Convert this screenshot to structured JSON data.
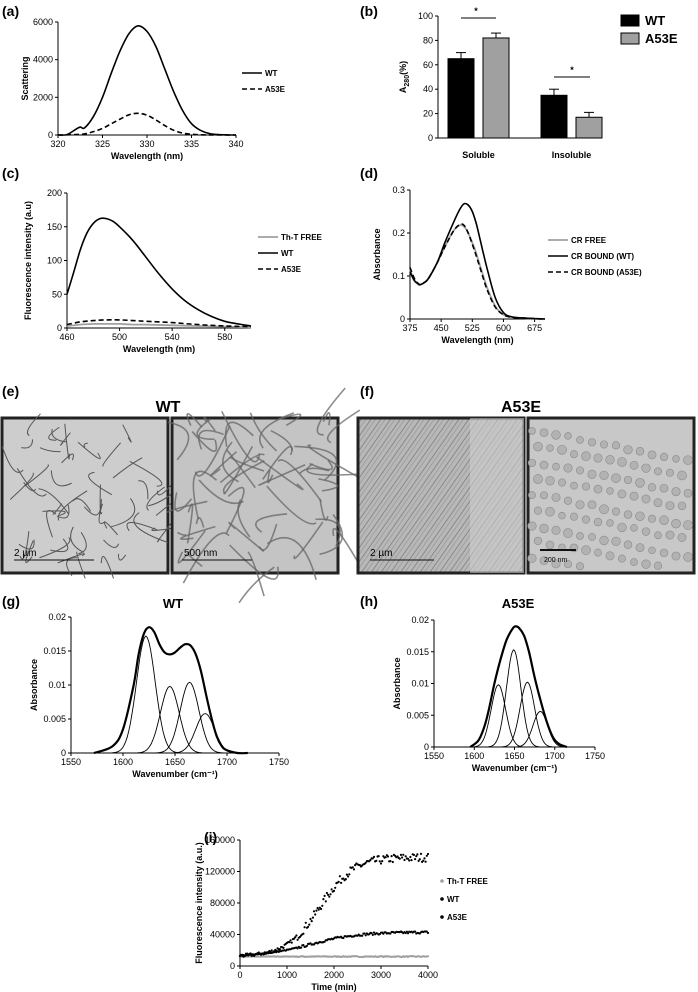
{
  "panels": {
    "a": {
      "letter": "(a)"
    },
    "b": {
      "letter": "(b)"
    },
    "c": {
      "letter": "(c)"
    },
    "d": {
      "letter": "(d)"
    },
    "e": {
      "letter": "(e)",
      "title": "WT",
      "scale_left": "2  µm",
      "scale_right": "500  nm"
    },
    "f": {
      "letter": "(f)",
      "title": "A53E",
      "scale_left": "2  µm",
      "scale_right": "200 nm"
    },
    "g": {
      "letter": "(g)"
    },
    "h": {
      "letter": "(h)"
    },
    "i": {
      "letter": "(i)"
    }
  },
  "colors": {
    "black": "#000000",
    "gray": "#a0a0a0",
    "micrograph_bg": "#c9c9c9"
  },
  "chart_data": [
    {
      "id": "a",
      "type": "line",
      "xlabel": "Wavelength (nm)",
      "ylabel": "Scattering",
      "xlim": [
        320,
        340
      ],
      "ylim": [
        0,
        6000
      ],
      "xticks": [
        320,
        325,
        330,
        335,
        340
      ],
      "yticks": [
        0,
        2000,
        4000,
        6000
      ],
      "series": [
        {
          "name": "WT",
          "style": "solid",
          "x": [
            320,
            321,
            322,
            322.5,
            323,
            324,
            325,
            326,
            327,
            328,
            329,
            330,
            331,
            332,
            333,
            334,
            335,
            336,
            337,
            338,
            339,
            340
          ],
          "values": [
            0,
            20,
            300,
            420,
            380,
            1000,
            2000,
            3300,
            4500,
            5400,
            5800,
            5500,
            4700,
            3500,
            2300,
            1300,
            600,
            250,
            80,
            20,
            5,
            0
          ]
        },
        {
          "name": "A53E",
          "style": "dashed",
          "x": [
            320,
            322,
            323,
            324,
            325,
            326,
            327,
            328,
            329,
            330,
            331,
            332,
            333,
            334,
            335,
            336,
            337,
            338,
            340
          ],
          "values": [
            0,
            20,
            60,
            180,
            350,
            600,
            850,
            1080,
            1150,
            1050,
            800,
            500,
            250,
            100,
            40,
            10,
            5,
            0,
            0
          ]
        }
      ]
    },
    {
      "id": "b",
      "type": "bar",
      "ylabel_main": "A",
      "ylabel_sub": "280",
      "ylabel_tail": "(%)",
      "ylim": [
        0,
        100
      ],
      "yticks": [
        0,
        20,
        40,
        60,
        80,
        100
      ],
      "categories": [
        "Soluble",
        "Insoluble"
      ],
      "series": [
        {
          "name": "WT",
          "color": "#000000",
          "values": [
            65,
            35
          ],
          "errors": [
            5,
            5
          ]
        },
        {
          "name": "A53E",
          "color": "#a0a0a0",
          "values": [
            82,
            17
          ],
          "errors": [
            4,
            4
          ]
        }
      ],
      "annotations": [
        "*",
        "*"
      ]
    },
    {
      "id": "c",
      "type": "line",
      "xlabel": "Wavelength (nm)",
      "ylabel": "Fluorescence intensity (a.u)",
      "xlim": [
        460,
        600
      ],
      "ylim": [
        0,
        200
      ],
      "xticks": [
        460,
        500,
        540,
        580
      ],
      "yticks": [
        0,
        50,
        100,
        150,
        200
      ],
      "series": [
        {
          "name": "Th-T FREE",
          "style": "solid-gray",
          "x": [
            460,
            470,
            480,
            490,
            500,
            510,
            520,
            540,
            560,
            580,
            600
          ],
          "values": [
            3,
            5,
            6,
            6,
            6,
            5,
            5,
            4,
            3,
            2,
            1
          ]
        },
        {
          "name": "WT",
          "style": "solid",
          "x": [
            460,
            465,
            470,
            475,
            480,
            485,
            490,
            495,
            500,
            510,
            520,
            530,
            540,
            550,
            560,
            570,
            580,
            590,
            600
          ],
          "values": [
            50,
            82,
            115,
            140,
            155,
            162,
            162,
            158,
            150,
            130,
            105,
            80,
            58,
            40,
            27,
            17,
            10,
            6,
            3
          ]
        },
        {
          "name": "A53E",
          "style": "dashed",
          "x": [
            460,
            470,
            480,
            490,
            500,
            510,
            520,
            540,
            560,
            580,
            600
          ],
          "values": [
            5,
            9,
            11,
            12,
            12,
            11,
            10,
            8,
            5,
            3,
            2
          ]
        }
      ]
    },
    {
      "id": "d",
      "type": "line",
      "xlabel": "Wavelength (nm)",
      "ylabel": "Absorbance",
      "xlim": [
        375,
        700
      ],
      "ylim": [
        0,
        0.3
      ],
      "xticks": [
        375,
        450,
        525,
        600,
        675
      ],
      "yticks": [
        0,
        0.1,
        0.2,
        0.3
      ],
      "series": [
        {
          "name": "CR FREE",
          "style": "solid-gray",
          "x": [
            375,
            385,
            395,
            400,
            410,
            420,
            440,
            460,
            480,
            495,
            505,
            515,
            530,
            545,
            560,
            580,
            600,
            620,
            650,
            700
          ],
          "values": [
            0.115,
            0.09,
            0.08,
            0.08,
            0.085,
            0.095,
            0.13,
            0.17,
            0.205,
            0.218,
            0.215,
            0.2,
            0.165,
            0.12,
            0.075,
            0.03,
            0.01,
            0.005,
            0.002,
            0
          ]
        },
        {
          "name": "CR BOUND (WT)",
          "style": "solid",
          "x": [
            375,
            385,
            395,
            400,
            410,
            420,
            440,
            460,
            480,
            495,
            505,
            515,
            525,
            535,
            545,
            560,
            580,
            600,
            620,
            650,
            700
          ],
          "values": [
            0.11,
            0.09,
            0.082,
            0.08,
            0.085,
            0.095,
            0.13,
            0.18,
            0.225,
            0.255,
            0.268,
            0.265,
            0.25,
            0.22,
            0.18,
            0.12,
            0.05,
            0.015,
            0.005,
            0.002,
            0
          ]
        },
        {
          "name": "CR BOUND (A53E)",
          "style": "dashed",
          "x": [
            375,
            385,
            395,
            400,
            410,
            420,
            440,
            460,
            480,
            495,
            505,
            515,
            530,
            545,
            560,
            580,
            600,
            620,
            650,
            700
          ],
          "values": [
            0.12,
            0.095,
            0.082,
            0.08,
            0.085,
            0.095,
            0.13,
            0.17,
            0.205,
            0.22,
            0.218,
            0.2,
            0.16,
            0.115,
            0.07,
            0.028,
            0.01,
            0.004,
            0.002,
            0
          ]
        }
      ]
    },
    {
      "id": "g",
      "type": "line",
      "title": "WT",
      "xlabel": "Wavenumber (cm⁻¹)",
      "ylabel": "Absorbance",
      "xlim": [
        1550,
        1750
      ],
      "ylim": [
        0,
        0.02
      ],
      "xticks": [
        1550,
        1600,
        1650,
        1700,
        1750
      ],
      "yticks": [
        0,
        0.005,
        0.01,
        0.015,
        0.02
      ],
      "components": [
        {
          "center": 1622,
          "height": 0.0172,
          "width": 9
        },
        {
          "center": 1645,
          "height": 0.0098,
          "width": 9
        },
        {
          "center": 1664,
          "height": 0.0104,
          "width": 9
        },
        {
          "center": 1679,
          "height": 0.0058,
          "width": 9
        }
      ],
      "envelope": {
        "x": [
          1572,
          1590,
          1600,
          1610,
          1615,
          1620,
          1625,
          1630,
          1635,
          1640,
          1645,
          1650,
          1655,
          1660,
          1665,
          1670,
          1675,
          1680,
          1685,
          1690,
          1695,
          1700,
          1710,
          1720
        ],
        "values": [
          0,
          0.001,
          0.0035,
          0.0098,
          0.0145,
          0.0175,
          0.0185,
          0.0178,
          0.016,
          0.0148,
          0.0145,
          0.0148,
          0.0155,
          0.016,
          0.0158,
          0.0145,
          0.012,
          0.0085,
          0.0052,
          0.0025,
          0.001,
          0.0004,
          0,
          0
        ]
      }
    },
    {
      "id": "h",
      "type": "line",
      "title": "A53E",
      "xlabel": "Wavenumber (cm⁻¹)",
      "ylabel": "Absorbance",
      "xlim": [
        1550,
        1750
      ],
      "ylim": [
        0,
        0.02
      ],
      "xticks": [
        1550,
        1600,
        1650,
        1700,
        1750
      ],
      "yticks": [
        0,
        0.005,
        0.01,
        0.015,
        0.02
      ],
      "components": [
        {
          "center": 1630,
          "height": 0.0098,
          "width": 9
        },
        {
          "center": 1649,
          "height": 0.0153,
          "width": 9
        },
        {
          "center": 1666,
          "height": 0.0102,
          "width": 9
        },
        {
          "center": 1682,
          "height": 0.0056,
          "width": 9
        }
      ],
      "envelope": {
        "x": [
          1595,
          1605,
          1612,
          1618,
          1625,
          1632,
          1640,
          1648,
          1652,
          1656,
          1662,
          1668,
          1675,
          1682,
          1690,
          1698,
          1705,
          1715
        ],
        "values": [
          0,
          0.001,
          0.003,
          0.0058,
          0.01,
          0.0135,
          0.0168,
          0.0187,
          0.019,
          0.0187,
          0.0175,
          0.015,
          0.011,
          0.0075,
          0.004,
          0.0015,
          0.0005,
          0
        ]
      }
    },
    {
      "id": "i",
      "type": "scatter",
      "xlabel": "Time (min)",
      "ylabel": "Fluorescence intensity (a.u.)",
      "xlim": [
        0,
        4000
      ],
      "ylim": [
        0,
        160000
      ],
      "xticks": [
        0,
        1000,
        2000,
        3000,
        4000
      ],
      "yticks": [
        0,
        40000,
        80000,
        120000,
        160000
      ],
      "series": [
        {
          "name": "Th-T FREE",
          "color": "#a0a0a0",
          "model": "flat",
          "params": {
            "level": 12000
          }
        },
        {
          "name": "WT",
          "color": "#000000",
          "model": "sigmoid",
          "params": {
            "base": 12000,
            "top": 138000,
            "mid": 1700,
            "k": 0.0028
          }
        },
        {
          "name": "A53E",
          "color": "#000000",
          "model": "sigmoid",
          "params": {
            "base": 12000,
            "top": 43000,
            "mid": 1500,
            "k": 0.002
          }
        }
      ]
    }
  ]
}
